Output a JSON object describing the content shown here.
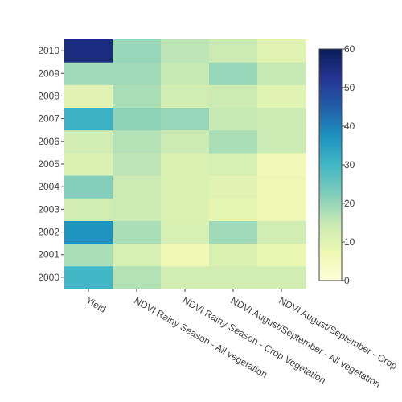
{
  "chart_data": {
    "type": "heatmap",
    "x_categories": [
      "Yield",
      "NDVI Rainy Season - All vegetation",
      "NDVI Rainy Season - Crop Vegetation",
      "NDVI August/September - All vegetation",
      "NDVI August/September - Crop"
    ],
    "y_categories": [
      "2000",
      "2001",
      "2002",
      "2003",
      "2004",
      "2005",
      "2006",
      "2007",
      "2008",
      "2009",
      "2010"
    ],
    "z": [
      [
        30,
        17,
        13,
        13,
        13
      ],
      [
        18,
        12,
        7,
        11,
        8
      ],
      [
        37,
        18,
        12,
        19,
        13
      ],
      [
        13,
        14,
        11,
        9,
        7
      ],
      [
        22,
        14,
        11,
        10,
        7
      ],
      [
        11,
        16,
        11,
        12,
        6
      ],
      [
        13,
        17,
        14,
        18,
        14
      ],
      [
        31,
        21,
        20,
        15,
        14
      ],
      [
        10,
        18,
        13,
        14,
        10
      ],
      [
        19,
        19,
        15,
        20,
        15
      ],
      [
        55,
        20,
        16,
        14,
        10
      ]
    ],
    "zmin": 0,
    "zmax": 60,
    "colorscale": "YlGnBu",
    "colorbar_ticks": [
      0,
      10,
      20,
      30,
      40,
      50,
      60
    ]
  }
}
